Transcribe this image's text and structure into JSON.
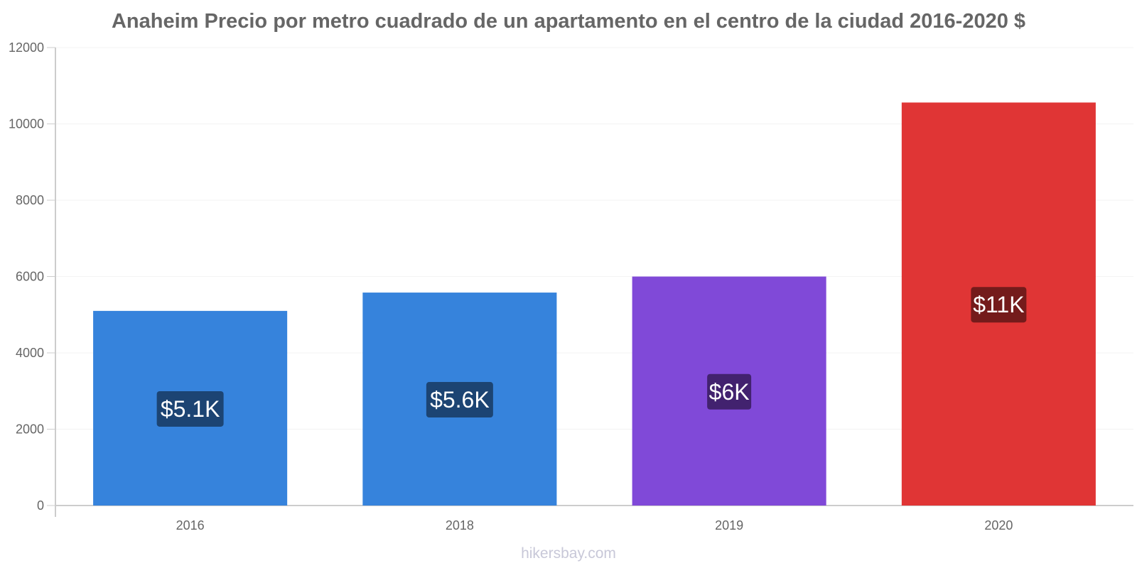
{
  "chart_data": {
    "type": "bar",
    "title": "Anaheim Precio por metro cuadrado de un apartamento en el centro de la ciudad 2016-2020 $",
    "xlabel": "",
    "ylabel": "",
    "categories": [
      "2016",
      "2018",
      "2019",
      "2020"
    ],
    "values": [
      5100,
      5580,
      6000,
      10560
    ],
    "data_labels": [
      "$5.1K",
      "$5.6K",
      "$6K",
      "$11K"
    ],
    "bar_colors": [
      "#3683dc",
      "#3683dc",
      "#8049d8",
      "#e03535"
    ],
    "label_bg_colors": [
      "#1c4473",
      "#1c4473",
      "#42226f",
      "#741b1b"
    ],
    "ylim": [
      0,
      12000
    ],
    "yticks": [
      0,
      2000,
      4000,
      6000,
      8000,
      10000,
      12000
    ],
    "grid": true,
    "legend": "none"
  },
  "credit": "hikersbay.com"
}
